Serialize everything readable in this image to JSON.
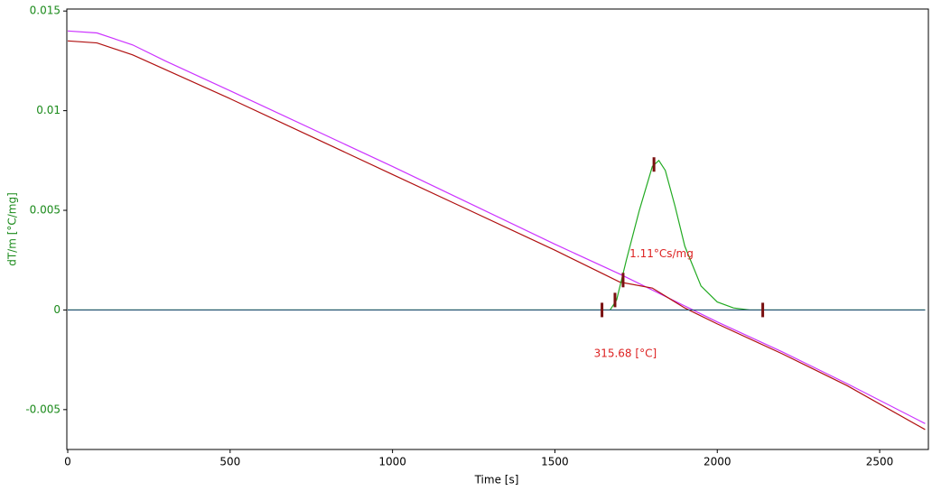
{
  "chart_data": {
    "type": "line",
    "xlabel": "Time [s]",
    "ylabel": "dT/m  [°C/mg]",
    "xlim": [
      0,
      2650
    ],
    "ylim": [
      -0.007,
      0.0151
    ],
    "xticks": [
      0,
      500,
      1000,
      1500,
      2000,
      2500
    ],
    "yticks": [
      -0.005,
      0,
      0.005,
      0.01,
      0.015
    ],
    "series": [
      {
        "color": "#cc33ff",
        "x": [
          0,
          90,
          200,
          300,
          500,
          1000,
          1500,
          1700,
          1900,
          2000,
          2200,
          2400,
          2640
        ],
        "values": [
          0.014,
          0.0139,
          0.0133,
          0.0125,
          0.011,
          0.0072,
          0.0033,
          0.0018,
          0.0002,
          -0.0006,
          -0.0021,
          -0.0037,
          -0.0057
        ]
      },
      {
        "color": "#b01010",
        "x": [
          0,
          90,
          200,
          500,
          1000,
          1500,
          1650,
          1700,
          1800,
          1850,
          1900,
          2000,
          2200,
          2400,
          2640
        ],
        "values": [
          0.0135,
          0.0134,
          0.0128,
          0.0106,
          0.0068,
          0.003,
          0.0018,
          0.0014,
          0.0011,
          0.0006,
          0.0001,
          -0.0007,
          -0.0022,
          -0.0038,
          -0.006
        ]
      },
      {
        "color": "#22aa22",
        "x": [
          0,
          1670,
          1690,
          1720,
          1760,
          1800,
          1820,
          1840,
          1870,
          1900,
          1950,
          2000,
          2050,
          2100,
          2640
        ],
        "values": [
          0,
          0,
          0.0005,
          0.0025,
          0.005,
          0.0072,
          0.0075,
          0.007,
          0.0052,
          0.0032,
          0.0012,
          0.0004,
          0.0001,
          0,
          0
        ]
      },
      {
        "color": "#1f4f6f",
        "x": [
          0,
          2640
        ],
        "values": [
          0,
          0
        ]
      }
    ],
    "markers": {
      "color": "#7a1010",
      "x": [
        1645,
        1685,
        1710,
        1805,
        2140
      ],
      "values": [
        0,
        0.0005,
        0.0015,
        0.0073,
        0
      ]
    },
    "annotations": [
      {
        "text": "1.11°Cs/mg",
        "x": 1730,
        "y": 0.0028,
        "color": "#dd2222"
      },
      {
        "text": "315.68 [°C]",
        "x": 1620,
        "y": -0.0022,
        "color": "#dd2222"
      }
    ]
  }
}
